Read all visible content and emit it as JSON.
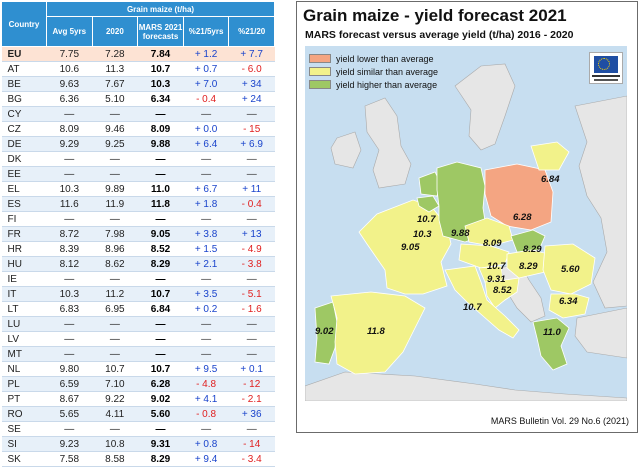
{
  "table": {
    "country_header": "Country",
    "group_header": "Grain maize (t/ha)",
    "columns": [
      "Avg 5yrs",
      "2020",
      "MARS 2021 forecasts",
      "%21/5yrs",
      "%21/20"
    ],
    "rows": [
      {
        "c": "EU",
        "avg": "7.75",
        "y2020": "7.28",
        "fc": "7.84",
        "p5": "+ 1.2",
        "p20": "+ 7.7",
        "s5": "pos",
        "s20": "pos"
      },
      {
        "c": "AT",
        "avg": "10.6",
        "y2020": "11.3",
        "fc": "10.7",
        "p5": "+ 0.7",
        "p20": "- 6.0",
        "s5": "pos",
        "s20": "neg"
      },
      {
        "c": "BE",
        "avg": "9.63",
        "y2020": "7.67",
        "fc": "10.3",
        "p5": "+ 7.0",
        "p20": "+ 34",
        "s5": "pos",
        "s20": "pos"
      },
      {
        "c": "BG",
        "avg": "6.36",
        "y2020": "5.10",
        "fc": "6.34",
        "p5": "- 0.4",
        "p20": "+ 24",
        "s5": "neg",
        "s20": "pos"
      },
      {
        "c": "CY",
        "avg": "—",
        "y2020": "—",
        "fc": "—",
        "p5": "—",
        "p20": "—",
        "s5": "dash",
        "s20": "dash"
      },
      {
        "c": "CZ",
        "avg": "8.09",
        "y2020": "9.46",
        "fc": "8.09",
        "p5": "+ 0.0",
        "p20": "- 15",
        "s5": "pos",
        "s20": "neg"
      },
      {
        "c": "DE",
        "avg": "9.29",
        "y2020": "9.25",
        "fc": "9.88",
        "p5": "+ 6.4",
        "p20": "+ 6.9",
        "s5": "pos",
        "s20": "pos"
      },
      {
        "c": "DK",
        "avg": "—",
        "y2020": "—",
        "fc": "—",
        "p5": "—",
        "p20": "—",
        "s5": "dash",
        "s20": "dash"
      },
      {
        "c": "EE",
        "avg": "—",
        "y2020": "—",
        "fc": "—",
        "p5": "—",
        "p20": "—",
        "s5": "dash",
        "s20": "dash"
      },
      {
        "c": "EL",
        "avg": "10.3",
        "y2020": "9.89",
        "fc": "11.0",
        "p5": "+ 6.7",
        "p20": "+ 11",
        "s5": "pos",
        "s20": "pos"
      },
      {
        "c": "ES",
        "avg": "11.6",
        "y2020": "11.9",
        "fc": "11.8",
        "p5": "+ 1.8",
        "p20": "- 0.4",
        "s5": "pos",
        "s20": "neg"
      },
      {
        "c": "FI",
        "avg": "—",
        "y2020": "—",
        "fc": "—",
        "p5": "—",
        "p20": "—",
        "s5": "dash",
        "s20": "dash"
      },
      {
        "c": "FR",
        "avg": "8.72",
        "y2020": "7.98",
        "fc": "9.05",
        "p5": "+ 3.8",
        "p20": "+ 13",
        "s5": "pos",
        "s20": "pos"
      },
      {
        "c": "HR",
        "avg": "8.39",
        "y2020": "8.96",
        "fc": "8.52",
        "p5": "+ 1.5",
        "p20": "- 4.9",
        "s5": "pos",
        "s20": "neg"
      },
      {
        "c": "HU",
        "avg": "8.12",
        "y2020": "8.62",
        "fc": "8.29",
        "p5": "+ 2.1",
        "p20": "- 3.8",
        "s5": "pos",
        "s20": "neg"
      },
      {
        "c": "IE",
        "avg": "—",
        "y2020": "—",
        "fc": "—",
        "p5": "—",
        "p20": "—",
        "s5": "dash",
        "s20": "dash"
      },
      {
        "c": "IT",
        "avg": "10.3",
        "y2020": "11.2",
        "fc": "10.7",
        "p5": "+ 3.5",
        "p20": "- 5.1",
        "s5": "pos",
        "s20": "neg"
      },
      {
        "c": "LT",
        "avg": "6.83",
        "y2020": "6.95",
        "fc": "6.84",
        "p5": "+ 0.2",
        "p20": "- 1.6",
        "s5": "pos",
        "s20": "neg"
      },
      {
        "c": "LU",
        "avg": "—",
        "y2020": "—",
        "fc": "—",
        "p5": "—",
        "p20": "—",
        "s5": "dash",
        "s20": "dash"
      },
      {
        "c": "LV",
        "avg": "—",
        "y2020": "—",
        "fc": "—",
        "p5": "—",
        "p20": "—",
        "s5": "dash",
        "s20": "dash"
      },
      {
        "c": "MT",
        "avg": "—",
        "y2020": "—",
        "fc": "—",
        "p5": "—",
        "p20": "—",
        "s5": "dash",
        "s20": "dash"
      },
      {
        "c": "NL",
        "avg": "9.80",
        "y2020": "10.7",
        "fc": "10.7",
        "p5": "+ 9.5",
        "p20": "+ 0.1",
        "s5": "pos",
        "s20": "pos"
      },
      {
        "c": "PL",
        "avg": "6.59",
        "y2020": "7.10",
        "fc": "6.28",
        "p5": "- 4.8",
        "p20": "- 12",
        "s5": "neg",
        "s20": "neg"
      },
      {
        "c": "PT",
        "avg": "8.67",
        "y2020": "9.22",
        "fc": "9.02",
        "p5": "+ 4.1",
        "p20": "- 2.1",
        "s5": "pos",
        "s20": "neg"
      },
      {
        "c": "RO",
        "avg": "5.65",
        "y2020": "4.11",
        "fc": "5.60",
        "p5": "- 0.8",
        "p20": "+ 36",
        "s5": "neg",
        "s20": "pos"
      },
      {
        "c": "SE",
        "avg": "—",
        "y2020": "—",
        "fc": "—",
        "p5": "—",
        "p20": "—",
        "s5": "dash",
        "s20": "dash"
      },
      {
        "c": "SI",
        "avg": "9.23",
        "y2020": "10.8",
        "fc": "9.31",
        "p5": "+ 0.8",
        "p20": "- 14",
        "s5": "pos",
        "s20": "neg"
      },
      {
        "c": "SK",
        "avg": "7.58",
        "y2020": "8.58",
        "fc": "8.29",
        "p5": "+ 9.4",
        "p20": "- 3.4",
        "s5": "pos",
        "s20": "neg"
      }
    ]
  },
  "map": {
    "title": "Grain maize - yield forecast 2021",
    "subtitle": "MARS forecast versus average yield (t/ha) 2016 - 2020",
    "source": "MARS Bulletin Vol. 29 No.6 (2021)",
    "colors": {
      "sea": "#c7def0",
      "land": "#e6e6e6",
      "lower": "#f4a582",
      "similar": "#f2f28a",
      "higher": "#9ec864"
    },
    "legend": [
      {
        "label": "yield lower than average",
        "cat": "lower"
      },
      {
        "label": "yield similar than average",
        "cat": "similar"
      },
      {
        "label": "yield higher than average",
        "cat": "higher"
      }
    ],
    "regions": [
      {
        "name": "portugal",
        "cat": "higher",
        "value": "9.02"
      },
      {
        "name": "spain",
        "cat": "similar",
        "value": "11.8"
      },
      {
        "name": "france",
        "cat": "similar",
        "value": "9.05"
      },
      {
        "name": "belgium",
        "cat": "higher",
        "value": "10.3"
      },
      {
        "name": "netherlands",
        "cat": "higher",
        "value": "10.7"
      },
      {
        "name": "germany",
        "cat": "higher",
        "value": "9.88"
      },
      {
        "name": "poland",
        "cat": "lower",
        "value": "6.28"
      },
      {
        "name": "lithuania",
        "cat": "similar",
        "value": "6.84"
      },
      {
        "name": "czechia",
        "cat": "similar",
        "value": "8.09"
      },
      {
        "name": "slovakia",
        "cat": "higher",
        "value": "8.29"
      },
      {
        "name": "austria",
        "cat": "similar",
        "value": "10.7"
      },
      {
        "name": "hungary",
        "cat": "similar",
        "value": "8.29"
      },
      {
        "name": "slovenia",
        "cat": "similar",
        "value": "9.31"
      },
      {
        "name": "croatia",
        "cat": "similar",
        "value": "8.52"
      },
      {
        "name": "italy",
        "cat": "similar",
        "value": "10.7"
      },
      {
        "name": "romania",
        "cat": "similar",
        "value": "5.60"
      },
      {
        "name": "bulgaria",
        "cat": "similar",
        "value": "6.34"
      },
      {
        "name": "greece",
        "cat": "higher",
        "value": "11.0"
      }
    ]
  }
}
